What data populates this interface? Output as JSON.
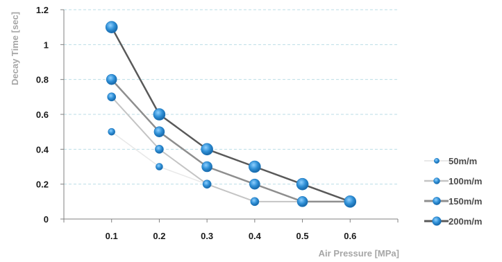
{
  "chart_data": {
    "type": "line",
    "title": "",
    "xlabel": "Air Pressure [MPa]",
    "ylabel": "Decay Time [sec]",
    "x": [
      0.1,
      0.2,
      0.3,
      0.4,
      0.5,
      0.6
    ],
    "x_tick_labels": [
      "0.1",
      "0.2",
      "0.3",
      "0.4",
      "0.5",
      "0.6"
    ],
    "xlim": [
      0,
      0.7
    ],
    "ylim": [
      0,
      1.2
    ],
    "y_ticks": [
      0,
      0.2,
      0.4,
      0.6,
      0.8,
      1,
      1.2
    ],
    "y_tick_labels": [
      "0",
      "0.2",
      "0.4",
      "0.6",
      "0.8",
      "1",
      "1.2"
    ],
    "grid": "horizontal dashed",
    "legend_position": "right",
    "series": [
      {
        "name": "50m/m",
        "x": [
          0.1,
          0.2,
          0.3
        ],
        "values": [
          0.5,
          0.3,
          0.2
        ],
        "color": "#e8e8e8",
        "marker_color": "#2e8fd6"
      },
      {
        "name": "100m/m",
        "x": [
          0.1,
          0.2,
          0.3,
          0.4,
          0.5
        ],
        "values": [
          0.7,
          0.4,
          0.2,
          0.1,
          0.1
        ],
        "color": "#c4c4c4",
        "marker_color": "#2e8fd6"
      },
      {
        "name": "150m/m",
        "x": [
          0.1,
          0.2,
          0.3,
          0.4,
          0.5,
          0.6
        ],
        "values": [
          0.8,
          0.5,
          0.3,
          0.2,
          0.1,
          0.1
        ],
        "color": "#8e8e8e",
        "marker_color": "#2e8fd6"
      },
      {
        "name": "200m/m",
        "x": [
          0.1,
          0.2,
          0.3,
          0.4,
          0.5,
          0.6
        ],
        "values": [
          1.1,
          0.6,
          0.4,
          0.3,
          0.2,
          0.1
        ],
        "color": "#595959",
        "marker_color": "#2e8fd6"
      }
    ]
  }
}
